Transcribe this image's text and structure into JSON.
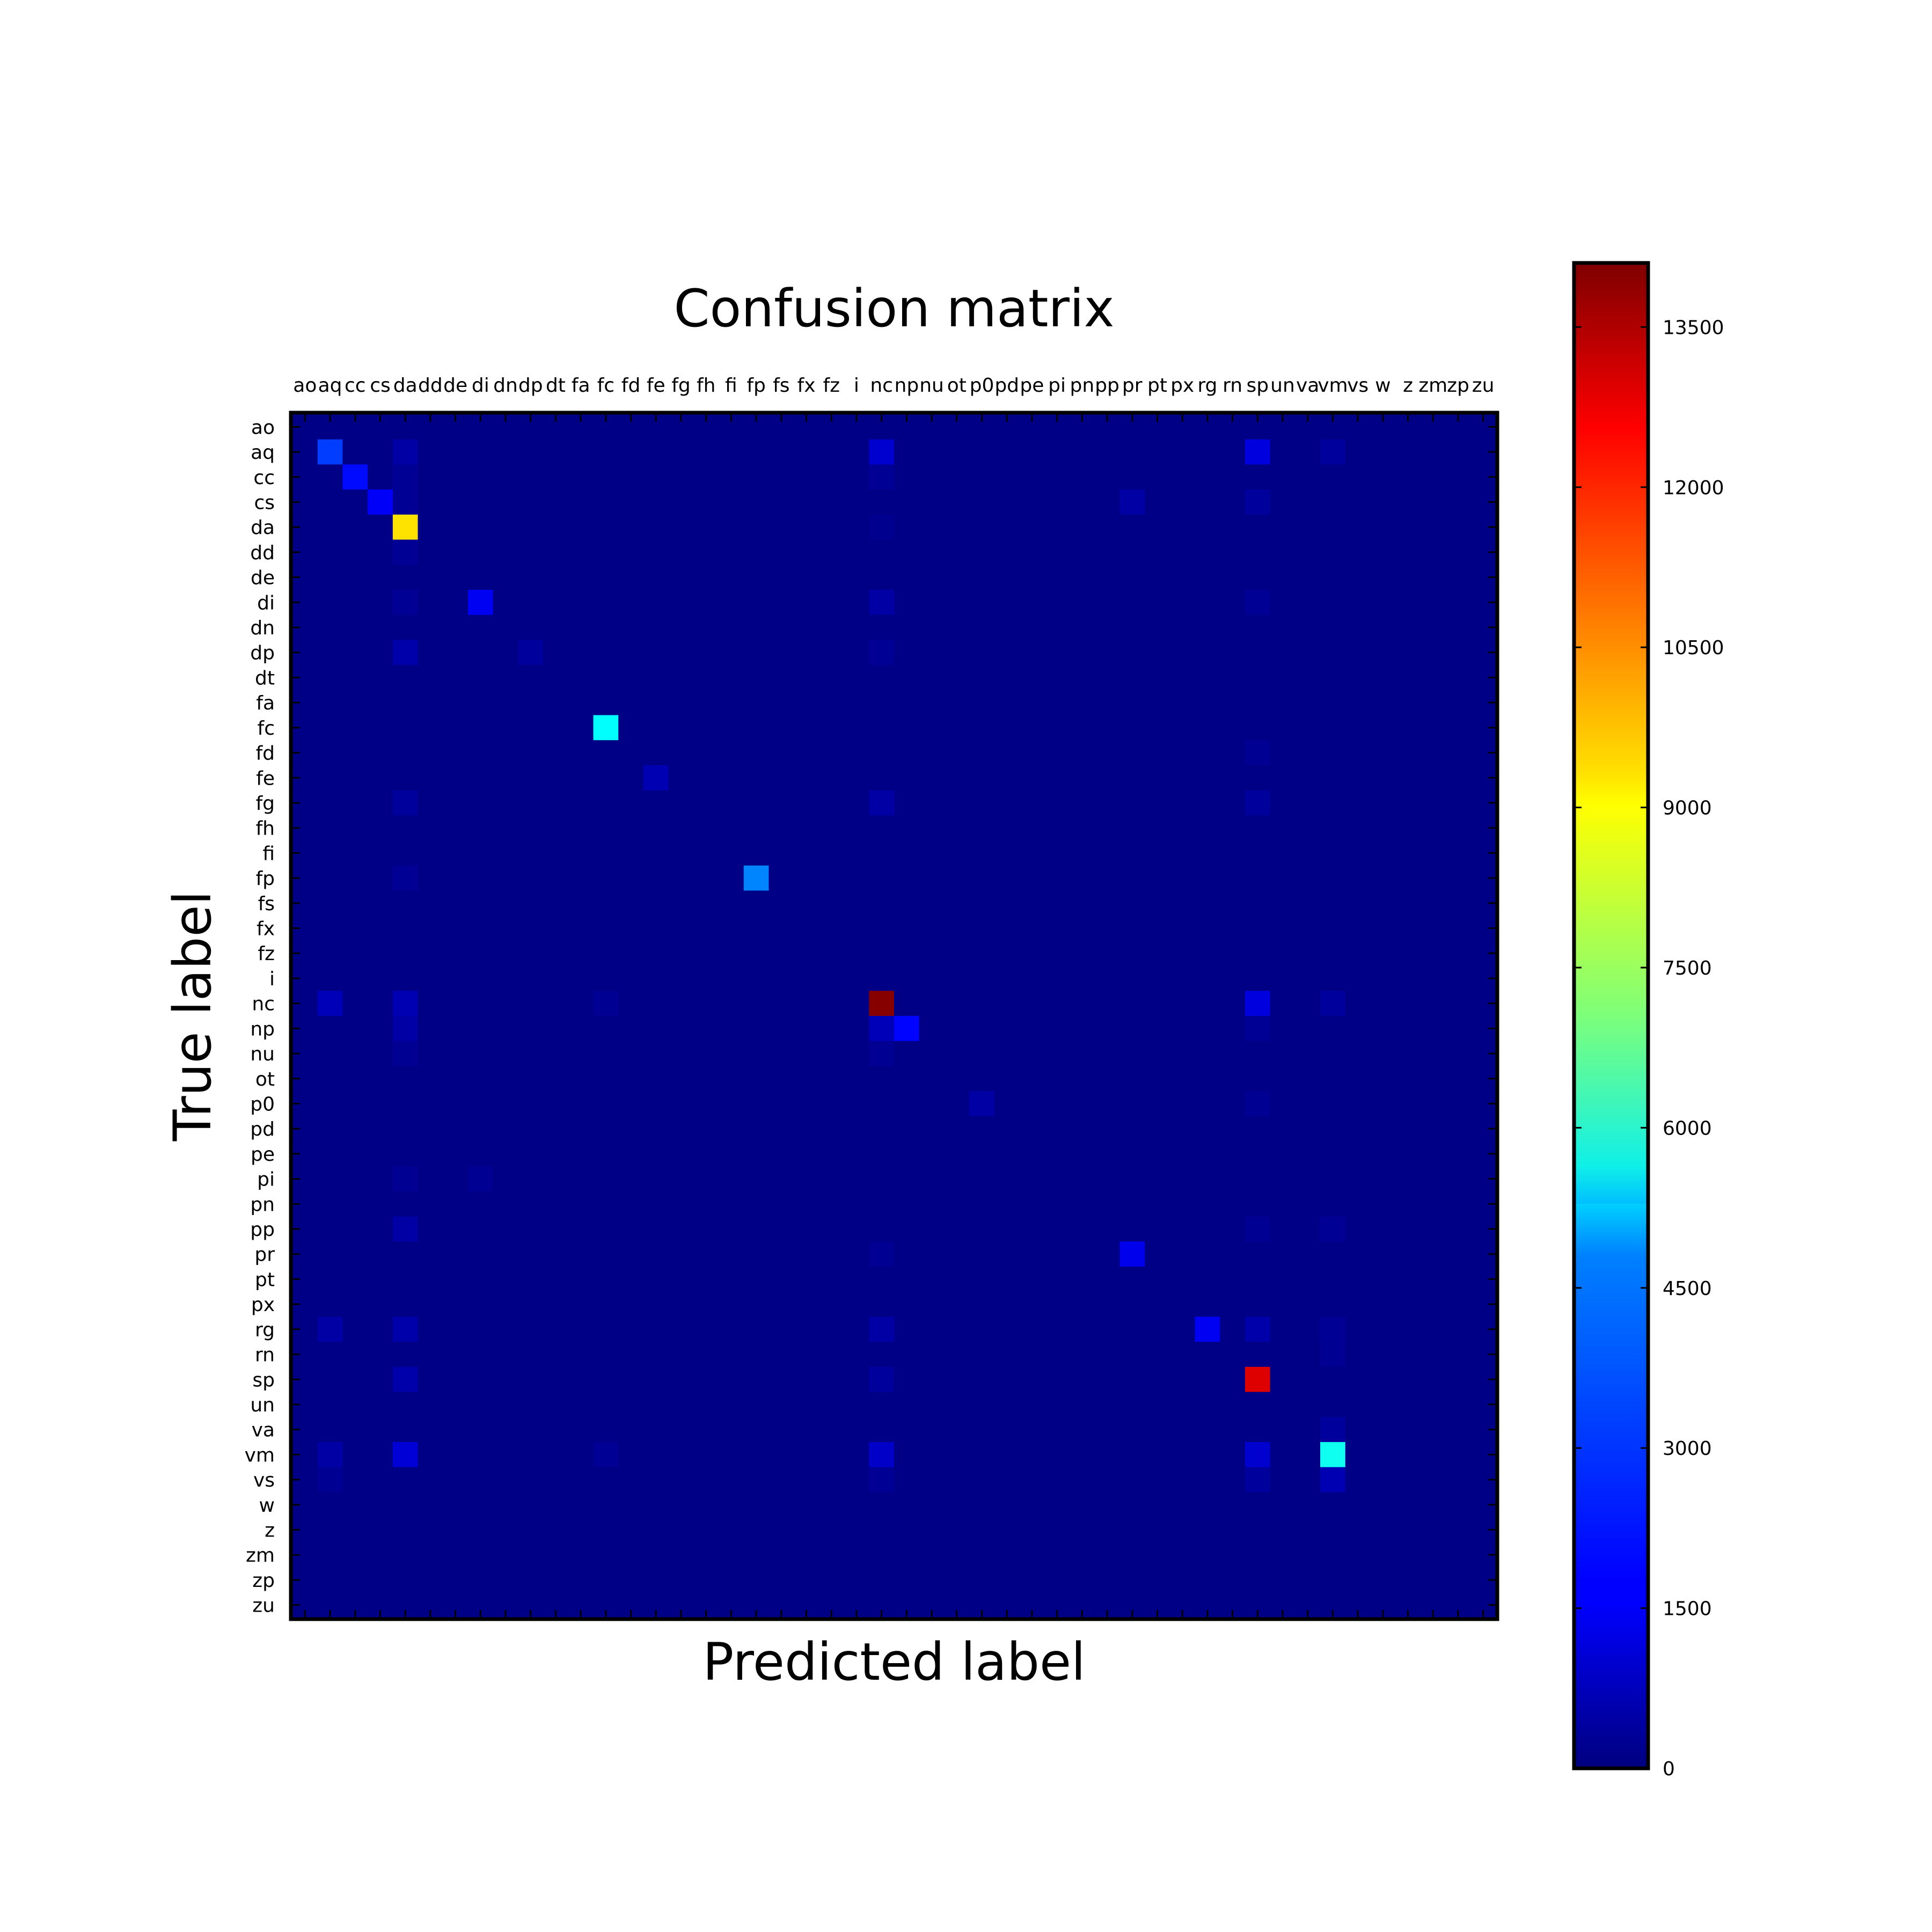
{
  "chart_data": {
    "type": "heatmap",
    "title": "Confusion matrix",
    "xlabel": "Predicted label",
    "ylabel": "True label",
    "labels": [
      "ao",
      "aq",
      "cc",
      "cs",
      "da",
      "dd",
      "de",
      "di",
      "dn",
      "dp",
      "dt",
      "fa",
      "fc",
      "fd",
      "fe",
      "fg",
      "fh",
      "fi",
      "fp",
      "fs",
      "fx",
      "fz",
      "i",
      "nc",
      "np",
      "nu",
      "ot",
      "p0",
      "pd",
      "pe",
      "pi",
      "pn",
      "pp",
      "pr",
      "pt",
      "px",
      "rg",
      "rn",
      "sp",
      "un",
      "va",
      "vm",
      "vs",
      "w",
      "z",
      "zm",
      "zp",
      "zu"
    ],
    "colormap": "jet",
    "vmin": 0,
    "vmax": 14100,
    "colorbar_ticks": [
      0,
      1500,
      3000,
      4500,
      6000,
      7500,
      9000,
      10500,
      12000,
      13500
    ],
    "background_value": 100,
    "cells": [
      {
        "row": "aq",
        "col": "aq",
        "value": 2600
      },
      {
        "row": "aq",
        "col": "da",
        "value": 500
      },
      {
        "row": "aq",
        "col": "nc",
        "value": 1100
      },
      {
        "row": "aq",
        "col": "sp",
        "value": 1300
      },
      {
        "row": "aq",
        "col": "vm",
        "value": 400
      },
      {
        "row": "cc",
        "col": "cc",
        "value": 1900
      },
      {
        "row": "cc",
        "col": "da",
        "value": 300
      },
      {
        "row": "cc",
        "col": "nc",
        "value": 300
      },
      {
        "row": "cs",
        "col": "cs",
        "value": 1700
      },
      {
        "row": "cs",
        "col": "da",
        "value": 300
      },
      {
        "row": "cs",
        "col": "pr",
        "value": 500
      },
      {
        "row": "cs",
        "col": "sp",
        "value": 400
      },
      {
        "row": "da",
        "col": "da",
        "value": 9200
      },
      {
        "row": "da",
        "col": "nc",
        "value": 200
      },
      {
        "row": "dd",
        "col": "da",
        "value": 300
      },
      {
        "row": "di",
        "col": "di",
        "value": 1600
      },
      {
        "row": "di",
        "col": "da",
        "value": 300
      },
      {
        "row": "di",
        "col": "nc",
        "value": 500
      },
      {
        "row": "di",
        "col": "sp",
        "value": 300
      },
      {
        "row": "dp",
        "col": "da",
        "value": 600
      },
      {
        "row": "dp",
        "col": "dp",
        "value": 400
      },
      {
        "row": "dp",
        "col": "nc",
        "value": 300
      },
      {
        "row": "fc",
        "col": "fc",
        "value": 5300
      },
      {
        "row": "fd",
        "col": "sp",
        "value": 250
      },
      {
        "row": "fe",
        "col": "fe",
        "value": 700
      },
      {
        "row": "fg",
        "col": "da",
        "value": 400
      },
      {
        "row": "fg",
        "col": "nc",
        "value": 500
      },
      {
        "row": "fg",
        "col": "sp",
        "value": 400
      },
      {
        "row": "fp",
        "col": "fp",
        "value": 3600
      },
      {
        "row": "fp",
        "col": "da",
        "value": 300
      },
      {
        "row": "nc",
        "col": "nc",
        "value": 14000
      },
      {
        "row": "nc",
        "col": "aq",
        "value": 800
      },
      {
        "row": "nc",
        "col": "da",
        "value": 700
      },
      {
        "row": "nc",
        "col": "sp",
        "value": 1300
      },
      {
        "row": "nc",
        "col": "vm",
        "value": 400
      },
      {
        "row": "nc",
        "col": "fc",
        "value": 250
      },
      {
        "row": "np",
        "col": "np",
        "value": 1800
      },
      {
        "row": "np",
        "col": "nc",
        "value": 800
      },
      {
        "row": "np",
        "col": "da",
        "value": 500
      },
      {
        "row": "np",
        "col": "sp",
        "value": 300
      },
      {
        "row": "nu",
        "col": "da",
        "value": 250
      },
      {
        "row": "nu",
        "col": "nc",
        "value": 250
      },
      {
        "row": "p0",
        "col": "p0",
        "value": 500
      },
      {
        "row": "p0",
        "col": "sp",
        "value": 250
      },
      {
        "row": "pi",
        "col": "da",
        "value": 250
      },
      {
        "row": "pi",
        "col": "di",
        "value": 250
      },
      {
        "row": "pp",
        "col": "da",
        "value": 500
      },
      {
        "row": "pp",
        "col": "vm",
        "value": 300
      },
      {
        "row": "pp",
        "col": "sp",
        "value": 250
      },
      {
        "row": "pr",
        "col": "pr",
        "value": 1500
      },
      {
        "row": "pr",
        "col": "nc",
        "value": 250
      },
      {
        "row": "rg",
        "col": "rg",
        "value": 1600
      },
      {
        "row": "rg",
        "col": "aq",
        "value": 500
      },
      {
        "row": "rg",
        "col": "da",
        "value": 600
      },
      {
        "row": "rg",
        "col": "nc",
        "value": 500
      },
      {
        "row": "rg",
        "col": "sp",
        "value": 600
      },
      {
        "row": "rg",
        "col": "vm",
        "value": 300
      },
      {
        "row": "rn",
        "col": "vm",
        "value": 250
      },
      {
        "row": "sp",
        "col": "sp",
        "value": 12800
      },
      {
        "row": "sp",
        "col": "da",
        "value": 600
      },
      {
        "row": "sp",
        "col": "nc",
        "value": 400
      },
      {
        "row": "va",
        "col": "vm",
        "value": 400
      },
      {
        "row": "vm",
        "col": "vm",
        "value": 5500
      },
      {
        "row": "vm",
        "col": "da",
        "value": 1200
      },
      {
        "row": "vm",
        "col": "nc",
        "value": 1000
      },
      {
        "row": "vm",
        "col": "sp",
        "value": 1100
      },
      {
        "row": "vm",
        "col": "aq",
        "value": 500
      },
      {
        "row": "vm",
        "col": "fc",
        "value": 300
      },
      {
        "row": "vs",
        "col": "vm",
        "value": 700
      },
      {
        "row": "vs",
        "col": "sp",
        "value": 400
      },
      {
        "row": "vs",
        "col": "nc",
        "value": 300
      },
      {
        "row": "vs",
        "col": "aq",
        "value": 250
      }
    ]
  }
}
